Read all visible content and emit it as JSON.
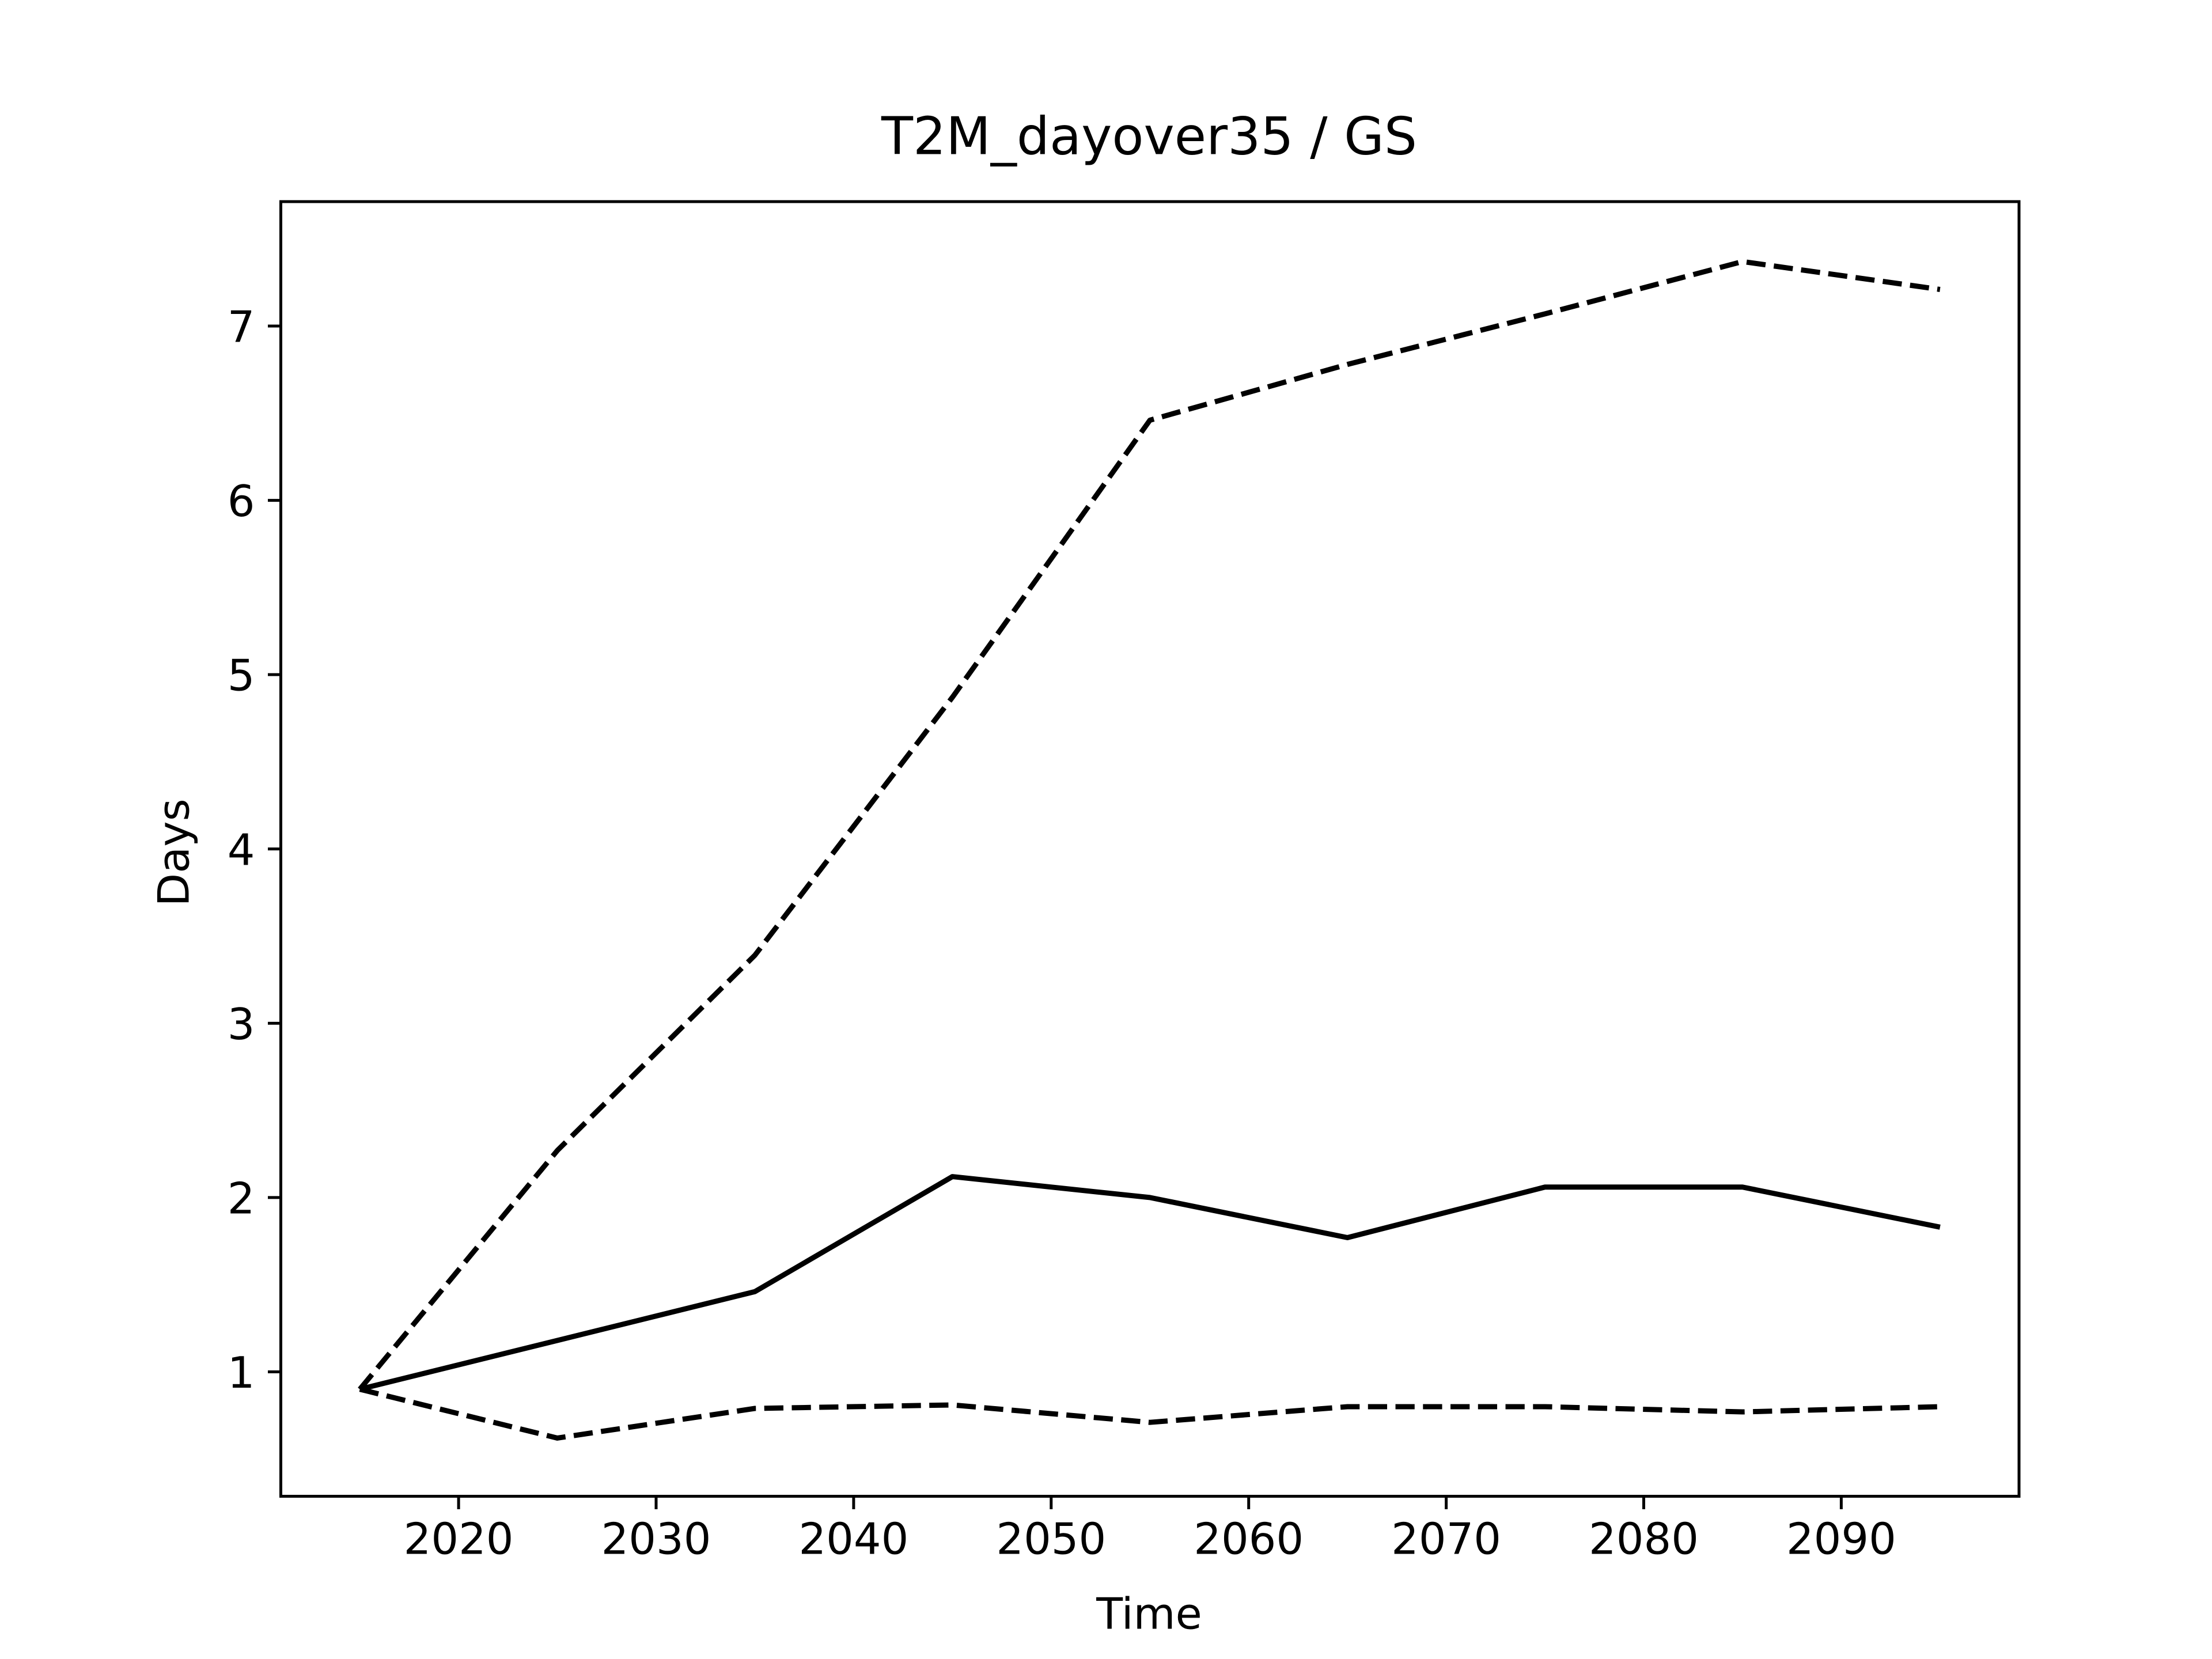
{
  "chart_data": {
    "type": "line",
    "title": "T2M_dayover35 / GS",
    "xlabel": "Time",
    "ylabel": "Days",
    "x": [
      2015,
      2025,
      2035,
      2045,
      2055,
      2065,
      2075,
      2085,
      2095
    ],
    "series": [
      {
        "color": "#000000",
        "linestyle": "solid",
        "values": [
          0.9,
          1.18,
          1.46,
          2.12,
          2.0,
          1.77,
          2.06,
          2.06,
          1.83
        ]
      },
      {
        "color": "#000000",
        "linestyle": "dashed",
        "values": [
          0.9,
          2.27,
          3.39,
          4.87,
          6.46,
          6.78,
          7.07,
          7.37,
          7.21
        ]
      },
      {
        "color": "#000000",
        "linestyle": "dashed",
        "values": [
          0.9,
          0.62,
          0.79,
          0.81,
          0.71,
          0.8,
          0.8,
          0.77,
          0.8
        ]
      }
    ],
    "xlim": [
      2011,
      2099
    ],
    "ylim": [
      0.286,
      7.714
    ],
    "xticks": [
      2020,
      2030,
      2040,
      2050,
      2060,
      2070,
      2080,
      2090
    ],
    "yticks": [
      1,
      2,
      3,
      4,
      5,
      6,
      7
    ],
    "grid": false
  }
}
